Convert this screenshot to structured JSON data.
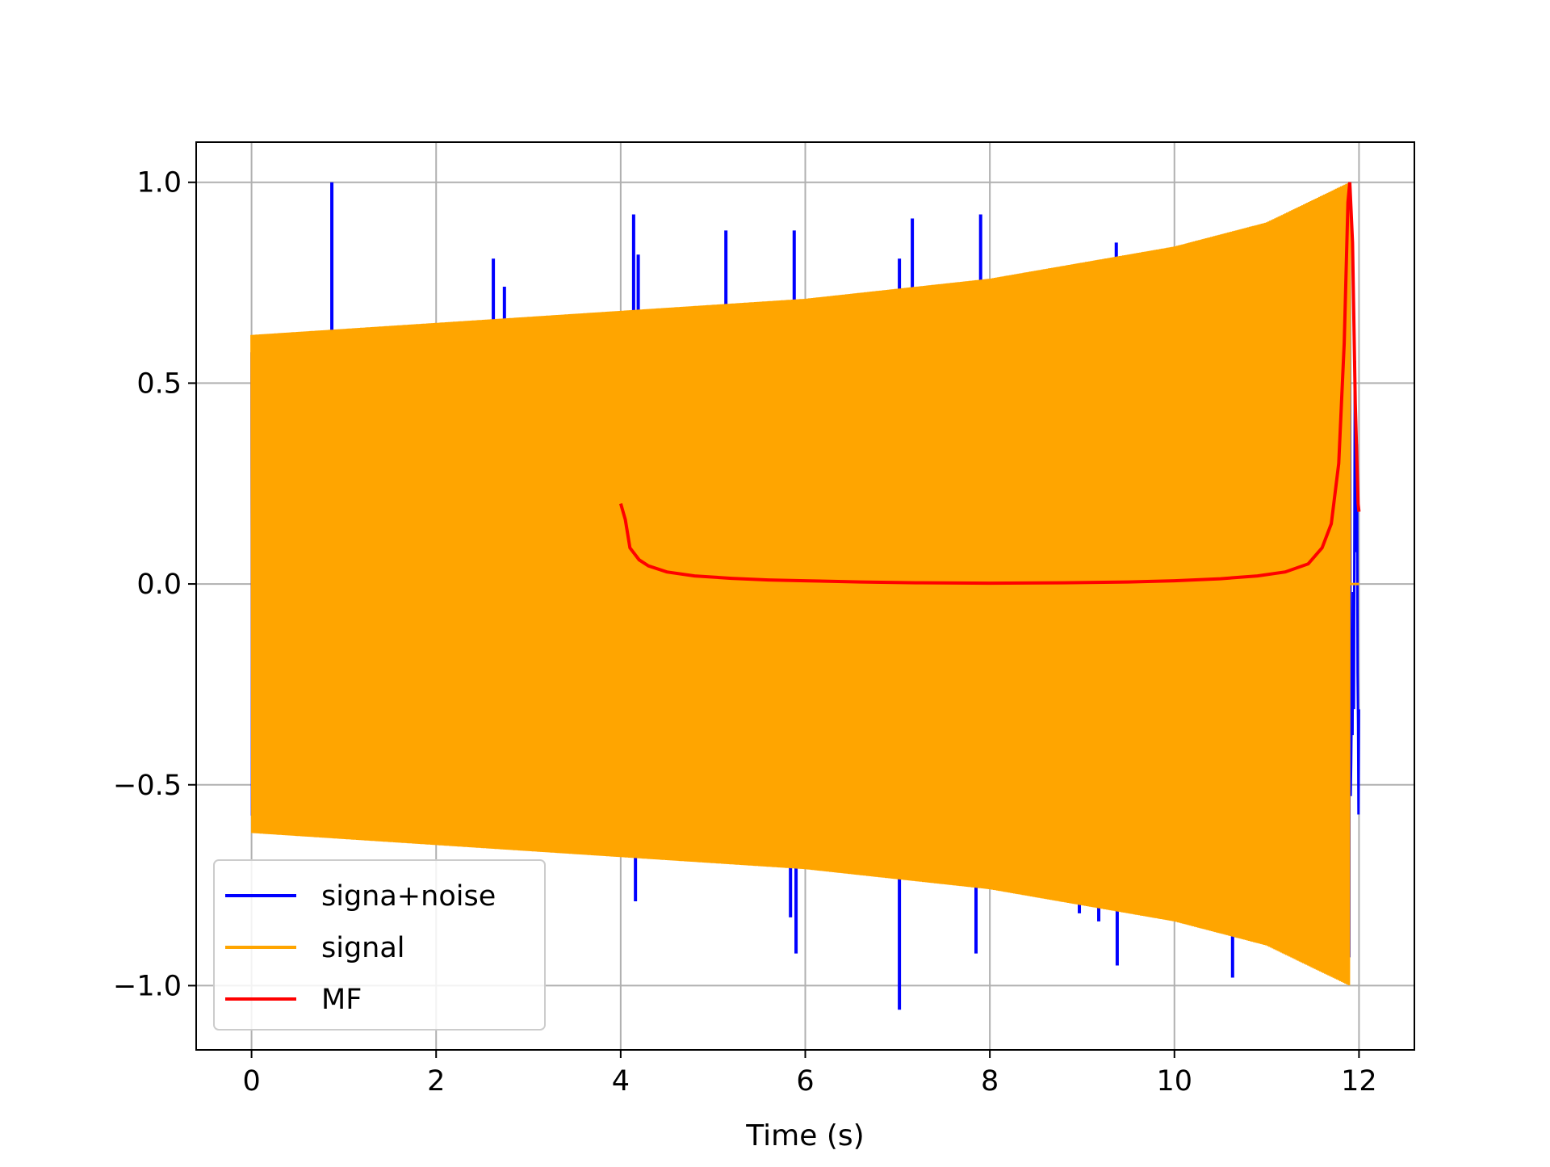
{
  "chart_data": {
    "type": "line",
    "title": "",
    "xlabel": "Time (s)",
    "ylabel": "",
    "xlim": [
      -0.6,
      12.6
    ],
    "ylim": [
      -1.16,
      1.1
    ],
    "xticks": [
      0,
      2,
      4,
      6,
      8,
      10,
      12
    ],
    "xtick_labels": [
      "0",
      "2",
      "4",
      "6",
      "8",
      "10",
      "12"
    ],
    "yticks": [
      -1.0,
      -0.5,
      0.0,
      0.5,
      1.0
    ],
    "ytick_labels": [
      "−1.0",
      "−0.5",
      "0.0",
      "0.5",
      "1.0"
    ],
    "grid": true,
    "legend_position": "lower-left",
    "legend": [
      {
        "label": "signa+noise",
        "color": "#0000ff"
      },
      {
        "label": "signal",
        "color": "#ffa500"
      },
      {
        "label": "MF",
        "color": "#ff0000"
      }
    ],
    "series": [
      {
        "name": "signa+noise",
        "color": "#0000ff",
        "style": "noisy signal; same envelope as signal with impulsive spikes",
        "t_range": [
          0,
          12
        ],
        "spikes": [
          [
            0.87,
            1.0
          ],
          [
            2.62,
            0.81
          ],
          [
            2.74,
            0.74
          ],
          [
            4.14,
            0.92
          ],
          [
            4.19,
            0.82
          ],
          [
            5.14,
            0.88
          ],
          [
            5.88,
            0.88
          ],
          [
            7.02,
            0.81
          ],
          [
            7.16,
            0.91
          ],
          [
            7.9,
            0.92
          ],
          [
            9.37,
            0.85
          ],
          [
            11.63,
            0.93
          ],
          [
            7.02,
            -1.06
          ],
          [
            5.9,
            -0.92
          ],
          [
            5.84,
            -0.83
          ],
          [
            10.63,
            -0.98
          ],
          [
            9.38,
            -0.95
          ],
          [
            7.85,
            -0.92
          ],
          [
            9.18,
            -0.84
          ],
          [
            8.97,
            -0.82
          ],
          [
            4.16,
            -0.79
          ]
        ]
      },
      {
        "name": "signal",
        "color": "#ffa500",
        "style": "chirp oscillation, envelope growing to a peak then zero",
        "envelope": [
          [
            0,
            0.62
          ],
          [
            2,
            0.65
          ],
          [
            4,
            0.68
          ],
          [
            6,
            0.71
          ],
          [
            8,
            0.76
          ],
          [
            10,
            0.84
          ],
          [
            11,
            0.9
          ],
          [
            11.9,
            1.0
          ]
        ],
        "t_end": 11.9,
        "after_end_value": 0.0,
        "after_end_until": 12.0
      },
      {
        "name": "MF",
        "color": "#ff0000",
        "points": [
          [
            4.0,
            0.2
          ],
          [
            4.05,
            0.16
          ],
          [
            4.1,
            0.09
          ],
          [
            4.2,
            0.06
          ],
          [
            4.3,
            0.045
          ],
          [
            4.5,
            0.03
          ],
          [
            4.8,
            0.02
          ],
          [
            5.2,
            0.014
          ],
          [
            5.6,
            0.01
          ],
          [
            6.0,
            0.008
          ],
          [
            6.6,
            0.005
          ],
          [
            7.2,
            0.003
          ],
          [
            8.0,
            0.002
          ],
          [
            8.8,
            0.003
          ],
          [
            9.5,
            0.005
          ],
          [
            10.0,
            0.008
          ],
          [
            10.5,
            0.013
          ],
          [
            10.9,
            0.02
          ],
          [
            11.2,
            0.03
          ],
          [
            11.45,
            0.05
          ],
          [
            11.6,
            0.09
          ],
          [
            11.7,
            0.15
          ],
          [
            11.78,
            0.3
          ],
          [
            11.84,
            0.6
          ],
          [
            11.88,
            0.95
          ],
          [
            11.9,
            1.0
          ],
          [
            11.93,
            0.85
          ],
          [
            11.96,
            0.45
          ],
          [
            11.99,
            0.2
          ],
          [
            12.0,
            0.18
          ]
        ]
      }
    ]
  }
}
